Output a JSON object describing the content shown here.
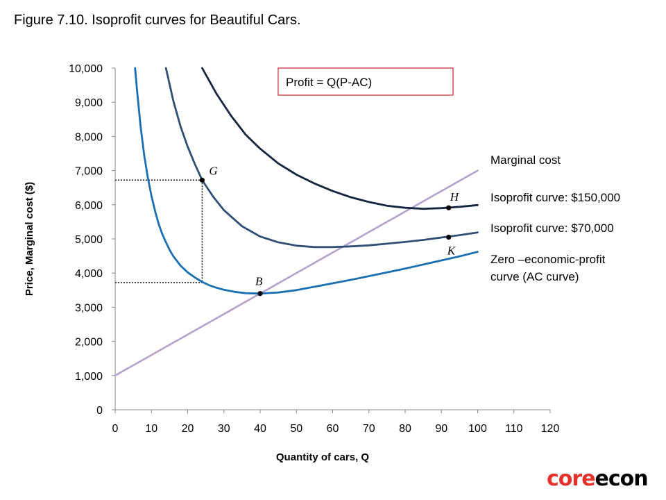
{
  "figure_title": "Figure 7.10. Isoprofit curves for Beautiful Cars.",
  "logo": {
    "part1": "core",
    "part2": "econ"
  },
  "colors": {
    "zero_profit": "#1a6fb3",
    "iso70": "#2e4e74",
    "iso150": "#14253f",
    "marginal_cost": "#b3a3cc",
    "callout_border": "#c0262d"
  },
  "chart_data": {
    "type": "line",
    "title": "Figure 7.10. Isoprofit curves for Beautiful Cars.",
    "xlabel": "Quantity of cars, Q",
    "ylabel": "Price, Marginal cost ($)",
    "xlim": [
      0,
      120
    ],
    "ylim": [
      0,
      10000
    ],
    "x_ticks": [
      0,
      10,
      20,
      30,
      40,
      50,
      60,
      70,
      80,
      90,
      100,
      110,
      120
    ],
    "x_tick_labels": [
      "0",
      "10",
      "20",
      "30",
      "40",
      "50",
      "60",
      "70",
      "80",
      "90",
      "100",
      "110",
      "120"
    ],
    "y_ticks": [
      0,
      1000,
      2000,
      3000,
      4000,
      5000,
      6000,
      7000,
      8000,
      9000,
      10000
    ],
    "y_tick_labels": [
      "0",
      "1,000",
      "2,000",
      "3,000",
      "4,000",
      "5,000",
      "6,000",
      "7,000",
      "8,000",
      "9,000",
      "10,000"
    ],
    "series": [
      {
        "name": "Marginal cost",
        "label": "Marginal cost",
        "x": [
          0,
          100
        ],
        "y": [
          1000,
          7000
        ]
      },
      {
        "name": "Isoprofit curve: $150,000",
        "label": "Isoprofit curve: $150,000",
        "profit": 150000,
        "x": [
          24,
          28,
          32,
          36,
          40,
          45,
          50,
          55,
          60,
          65,
          70,
          75,
          80,
          85,
          90,
          95,
          100
        ],
        "y": [
          10000,
          9240,
          8600,
          8050,
          7640,
          7210,
          6880,
          6620,
          6400,
          6220,
          6080,
          5970,
          5910,
          5880,
          5900,
          5940,
          5990
        ]
      },
      {
        "name": "Isoprofit curve: $70,000",
        "label": "Isoprofit curve: $70,000",
        "profit": 70000,
        "x": [
          14,
          16,
          18,
          20,
          22,
          24,
          27,
          30,
          35,
          40,
          45,
          50,
          55,
          60,
          65,
          70,
          75,
          80,
          85,
          90,
          95,
          100
        ],
        "y": [
          10000,
          9060,
          8300,
          7700,
          7190,
          6720,
          6240,
          5840,
          5370,
          5070,
          4900,
          4800,
          4760,
          4760,
          4780,
          4810,
          4860,
          4910,
          4970,
          5040,
          5110,
          5190
        ]
      },
      {
        "name": "Zero-economic-profit curve (AC curve)",
        "label_lines": [
          "Zero –economic-profit",
          "curve (AC curve)"
        ],
        "x": [
          5.5,
          6,
          7,
          8,
          9,
          10,
          11,
          12,
          13,
          14,
          15,
          16,
          18,
          20,
          22,
          24,
          26,
          28,
          30,
          33,
          36,
          40,
          45,
          50,
          55,
          60,
          65,
          70,
          75,
          80,
          85,
          90,
          95,
          100
        ],
        "y": [
          10000,
          9400,
          8300,
          7460,
          6800,
          6260,
          5820,
          5440,
          5140,
          4900,
          4680,
          4500,
          4220,
          4020,
          3870,
          3740,
          3640,
          3570,
          3510,
          3450,
          3410,
          3400,
          3430,
          3500,
          3600,
          3700,
          3800,
          3910,
          4020,
          4130,
          4250,
          4370,
          4490,
          4620
        ]
      }
    ],
    "points": [
      {
        "label": "G",
        "x": 24,
        "y": 6720
      },
      {
        "label": "B",
        "x": 40,
        "y": 3400
      },
      {
        "label": "H",
        "x": 92,
        "y": 5910
      },
      {
        "label": "K",
        "x": 92,
        "y": 5050
      }
    ],
    "guides": [
      {
        "point": "G",
        "y_level": 6720
      },
      {
        "point": "G",
        "y_level": 3720
      }
    ],
    "annotation": "Profit = Q(P-AC)"
  }
}
